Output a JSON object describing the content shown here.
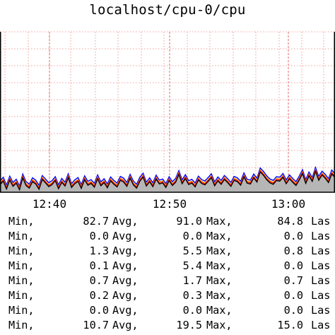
{
  "chart_data": {
    "type": "area",
    "title": "localhost/cpu-0/cpu",
    "xlabel": "",
    "ylabel": "",
    "x_ticks": [
      "12:40",
      "12:50",
      "13:00"
    ],
    "grid": true,
    "colors": {
      "fill": "#b6b6b6",
      "line_top": "#0000ff",
      "line_mid": "#ff0000",
      "line_highlight": "#ffb000",
      "line_base": "#000000",
      "grid": "#f08080",
      "axis": "#000000"
    },
    "series_profile": {
      "description_units": "percent",
      "samples": [
        3.5,
        4.8,
        2.1,
        5.2,
        3.0,
        4.1,
        1.8,
        5.9,
        3.3,
        2.4,
        4.6,
        3.8,
        2.0,
        5.4,
        4.2,
        2.9,
        3.6,
        5.0,
        2.2,
        4.4,
        3.1,
        6.0,
        2.6,
        3.9,
        4.7,
        2.3,
        5.3,
        3.4,
        4.0,
        2.7,
        5.6,
        3.2,
        4.3,
        2.5,
        4.9,
        3.7,
        2.8,
        5.1,
        4.5,
        3.0,
        5.8,
        3.5,
        2.4,
        4.8,
        6.2,
        3.1,
        4.6,
        2.9,
        5.5,
        3.8,
        4.2,
        2.6,
        5.0,
        3.3,
        4.4,
        7.1,
        3.9,
        5.7,
        3.6,
        4.1,
        2.8,
        5.2,
        4.0,
        3.5,
        4.7,
        6.0,
        3.2,
        4.9,
        3.7,
        5.4,
        4.3,
        3.0,
        5.1,
        4.6,
        3.4,
        6.3,
        4.1,
        3.8,
        5.9,
        4.5,
        8.0,
        6.8,
        5.3,
        4.2,
        3.7,
        5.0,
        4.8,
        6.1,
        3.9,
        5.6,
        4.4,
        3.3,
        5.2,
        7.4,
        4.0,
        6.6,
        4.7,
        8.2,
        5.1,
        6.9,
        5.8,
        4.3,
        7.3,
        6.0
      ]
    },
    "legend_rows": [
      {
        "label_min": "Min,",
        "min": "82.7",
        "label_avg": "Avg,",
        "avg": "91.0",
        "label_max": "Max,",
        "max": "84.8",
        "label_last": "Las"
      },
      {
        "label_min": "Min,",
        "min": "0.0",
        "label_avg": "Avg,",
        "avg": "0.0",
        "label_max": "Max,",
        "max": "0.0",
        "label_last": "Las"
      },
      {
        "label_min": "Min,",
        "min": "1.3",
        "label_avg": "Avg,",
        "avg": "5.5",
        "label_max": "Max,",
        "max": "0.8",
        "label_last": "Las"
      },
      {
        "label_min": "Min,",
        "min": "0.1",
        "label_avg": "Avg,",
        "avg": "5.4",
        "label_max": "Max,",
        "max": "0.0",
        "label_last": "Las"
      },
      {
        "label_min": "Min,",
        "min": "0.7",
        "label_avg": "Avg,",
        "avg": "1.7",
        "label_max": "Max,",
        "max": "0.7",
        "label_last": "Las"
      },
      {
        "label_min": "Min,",
        "min": "0.2",
        "label_avg": "Avg,",
        "avg": "0.3",
        "label_max": "Max,",
        "max": "0.0",
        "label_last": "Las"
      },
      {
        "label_min": "Min,",
        "min": "0.0",
        "label_avg": "Avg,",
        "avg": "0.0",
        "label_max": "Max,",
        "max": "0.0",
        "label_last": "Las"
      },
      {
        "label_min": "Min,",
        "min": "10.7",
        "label_avg": "Avg,",
        "avg": "19.5",
        "label_max": "Max,",
        "max": "15.0",
        "label_last": "Las"
      }
    ]
  }
}
